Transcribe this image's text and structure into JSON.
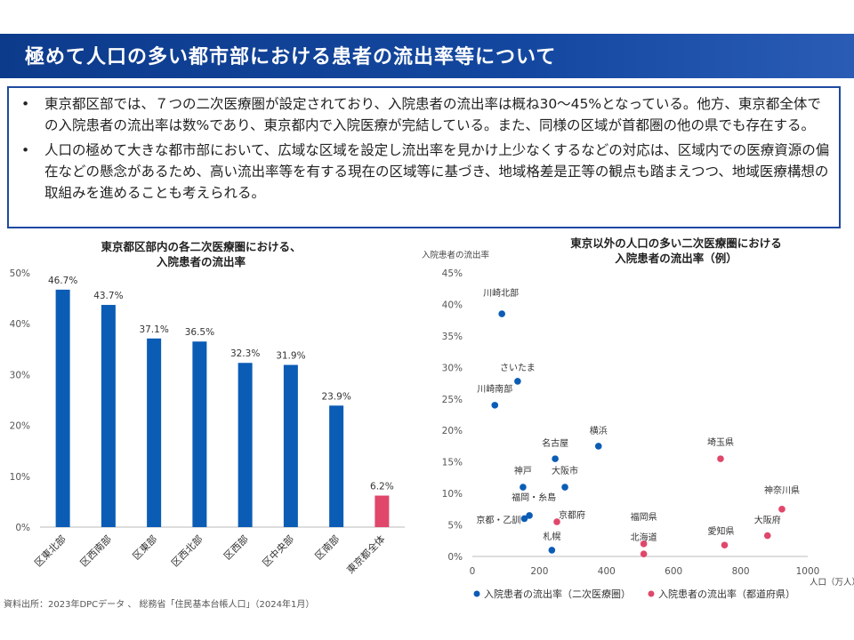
{
  "header": {
    "title": "極めて人口の多い都市部における患者の流出率等について"
  },
  "summary": {
    "bullet_mark": "•",
    "bullets": [
      "東京都区部では、７つの二次医療圏が設定されており、入院患者の流出率は概ね30～45%となっている。他方、東京都全体での入院患者の流出率は数%であり、東京都内で入院医療が完結している。また、同様の区域が首都圏の他の県でも存在する。",
      "人口の極めて大きな都市部において、広域な区域を設定し流出率を見かけ上少なくするなどの対応は、区域内での医療資源の偏在などの懸念があるため、高い流出率等を有する現在の区域等に基づき、地域格差是正等の観点も踏まえつつ、地域医療構想の取組みを進めることも考えられる。"
    ]
  },
  "chart_data": [
    {
      "type": "bar",
      "title_lines": [
        "東京都区部内の各二次医療圏における、",
        "入院患者の流出率"
      ],
      "categories": [
        "区東北部",
        "区西南部",
        "区東部",
        "区西北部",
        "区西部",
        "区中央部",
        "区南部",
        "東京都全体"
      ],
      "values": [
        46.7,
        43.7,
        37.1,
        36.5,
        32.3,
        31.9,
        23.9,
        6.2
      ],
      "value_labels": [
        "46.7%",
        "43.7%",
        "37.1%",
        "36.5%",
        "32.3%",
        "31.9%",
        "23.9%",
        "6.2%"
      ],
      "colors": [
        "#0b5cb5",
        "#0b5cb5",
        "#0b5cb5",
        "#0b5cb5",
        "#0b5cb5",
        "#0b5cb5",
        "#0b5cb5",
        "#e0476b"
      ],
      "ylim": [
        0,
        50
      ],
      "yticks": [
        0,
        10,
        20,
        30,
        40,
        50
      ],
      "ytick_labels": [
        "0%",
        "10%",
        "20%",
        "30%",
        "40%",
        "50%"
      ],
      "grid": false
    },
    {
      "type": "scatter",
      "title_lines": [
        "東京以外の人口の多い二次医療圏における",
        "入院患者の流出率（例）"
      ],
      "ylabel": "入院患者の流出率",
      "xlabel": "人口（万人）",
      "xlim": [
        0,
        1000
      ],
      "ylim": [
        0,
        45
      ],
      "xticks": [
        0,
        200,
        400,
        600,
        800,
        1000
      ],
      "xtick_labels": [
        "0",
        "200",
        "400",
        "600",
        "800",
        "1000"
      ],
      "yticks": [
        0,
        5,
        10,
        15,
        20,
        25,
        30,
        35,
        40,
        45
      ],
      "ytick_labels": [
        "0%",
        "5%",
        "10%",
        "15%",
        "20%",
        "25%",
        "30%",
        "35%",
        "40%",
        "45%"
      ],
      "grid": false,
      "legend_position": "bottom",
      "series": [
        {
          "name": "入院患者の流出率（二次医療圏）",
          "color": "#0b5cb5",
          "points": [
            {
              "label": "川崎北部",
              "x": 88,
              "y": 38.5
            },
            {
              "label": "さいたま",
              "x": 135,
              "y": 27.8
            },
            {
              "label": "川崎南部",
              "x": 67,
              "y": 24.0
            },
            {
              "label": "横浜",
              "x": 376,
              "y": 17.5
            },
            {
              "label": "名古屋",
              "x": 247,
              "y": 15.5
            },
            {
              "label": "大阪市",
              "x": 276,
              "y": 11.0
            },
            {
              "label": "神戸",
              "x": 151,
              "y": 11.0
            },
            {
              "label": "福岡・糸島",
              "x": 170,
              "y": 6.5
            },
            {
              "label": "京都・乙訓",
              "x": 155,
              "y": 6.0
            },
            {
              "label": "札幌",
              "x": 237,
              "y": 1.0
            }
          ]
        },
        {
          "name": "入院患者の流出率（都道府県）",
          "color": "#e0476b",
          "points": [
            {
              "label": "埼玉県",
              "x": 740,
              "y": 15.5
            },
            {
              "label": "神奈川県",
              "x": 923,
              "y": 7.5
            },
            {
              "label": "京都府",
              "x": 252,
              "y": 5.5
            },
            {
              "label": "大阪府",
              "x": 880,
              "y": 3.3
            },
            {
              "label": "愛知県",
              "x": 752,
              "y": 1.8
            },
            {
              "label": "福岡県",
              "x": 511,
              "y": 2.0
            },
            {
              "label": "北海道",
              "x": 511,
              "y": 0.4
            }
          ]
        }
      ]
    }
  ],
  "footer": {
    "source": "資料出所：2023年DPCデータ 、 総務省「住民基本台帳人口」（2024年1月）"
  }
}
